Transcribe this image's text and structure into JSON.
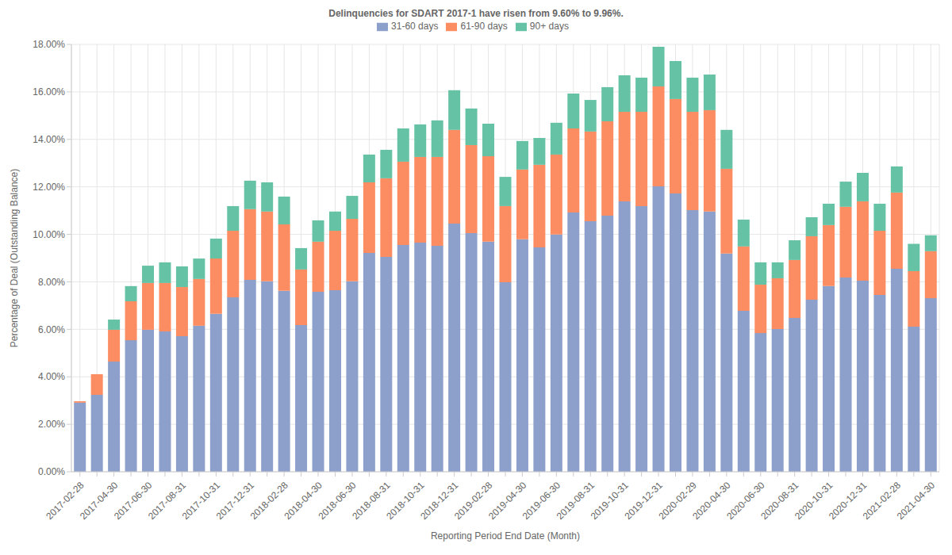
{
  "chart_data": {
    "type": "bar",
    "title": "Delinquencies for SDART 2017-1 have risen from 9.60% to 9.96%.",
    "x_label": "Reporting Period End Date (Month)",
    "y_label": "Percentage of Deal (Outstanding Balance)",
    "categories": [
      "2017-02-28",
      null,
      "2017-04-30",
      null,
      "2017-06-30",
      null,
      "2017-08-31",
      null,
      "2017-10-31",
      null,
      "2017-12-31",
      null,
      "2018-02-28",
      null,
      "2018-04-30",
      null,
      "2018-06-30",
      null,
      "2018-08-31",
      null,
      "2018-10-31",
      null,
      "2018-12-31",
      null,
      "2019-02-28",
      null,
      "2019-04-30",
      null,
      "2019-06-30",
      null,
      "2019-08-31",
      null,
      "2019-10-31",
      null,
      "2019-12-31",
      null,
      "2020-02-29",
      null,
      "2020-04-30",
      null,
      "2020-06-30",
      null,
      "2020-08-31",
      null,
      "2020-10-31",
      null,
      "2020-12-31",
      null,
      "2021-02-28",
      null,
      "2021-04-30"
    ],
    "series": [
      {
        "name": "31-60 days",
        "color": "#8da0cb",
        "values": [
          2.91,
          3.24,
          4.64,
          5.54,
          5.98,
          5.91,
          5.71,
          6.15,
          6.65,
          7.35,
          8.08,
          8.02,
          7.62,
          6.18,
          7.58,
          7.65,
          8.02,
          9.22,
          9.05,
          9.55,
          9.65,
          9.52,
          10.45,
          10.05,
          9.69,
          7.98,
          9.79,
          9.45,
          9.99,
          10.92,
          10.55,
          10.79,
          11.39,
          11.19,
          12.02,
          11.72,
          11.02,
          10.96,
          9.19,
          6.78,
          5.84,
          6.01,
          6.48,
          7.25,
          7.82,
          8.18,
          8.05,
          7.45,
          8.55,
          6.11,
          7.31
        ]
      },
      {
        "name": "61-90 days",
        "color": "#fc8d62",
        "values": [
          0.06,
          0.87,
          1.34,
          1.64,
          1.97,
          2.04,
          2.07,
          1.97,
          2.33,
          2.8,
          2.98,
          2.94,
          2.8,
          2.34,
          2.11,
          2.5,
          2.63,
          2.97,
          3.31,
          3.51,
          3.61,
          3.74,
          3.95,
          3.71,
          3.6,
          3.21,
          2.94,
          3.48,
          3.37,
          3.54,
          3.78,
          3.97,
          3.77,
          3.97,
          4.21,
          3.98,
          4.14,
          4.27,
          3.57,
          2.71,
          2.04,
          2.14,
          2.44,
          2.67,
          2.57,
          2.98,
          3.34,
          2.7,
          3.21,
          2.34,
          1.98
        ]
      },
      {
        "name": "90+ days",
        "color": "#66c2a5",
        "values": [
          0,
          0,
          0.43,
          0.64,
          0.73,
          0.87,
          0.87,
          0.86,
          0.84,
          1.04,
          1.2,
          1.23,
          1.17,
          0.9,
          0.9,
          0.81,
          0.97,
          1.17,
          1.2,
          1.4,
          1.37,
          1.54,
          1.67,
          1.54,
          1.37,
          1.23,
          1.2,
          1.13,
          1.34,
          1.47,
          1.33,
          1.44,
          1.54,
          1.44,
          1.67,
          1.6,
          1.44,
          1.5,
          1.64,
          1.13,
          0.94,
          0.67,
          0.83,
          0.8,
          0.9,
          1.06,
          1.2,
          1.14,
          1.1,
          1.15,
          0.67
        ]
      }
    ],
    "ylim": [
      0,
      18
    ],
    "yticks": [
      {
        "value": 0,
        "label": "0.00%"
      },
      {
        "value": 2,
        "label": "2.00%"
      },
      {
        "value": 4,
        "label": "4.00%"
      },
      {
        "value": 6,
        "label": "6.00%"
      },
      {
        "value": 8,
        "label": "8.00%"
      },
      {
        "value": 10,
        "label": "10.00%"
      },
      {
        "value": 12,
        "label": "12.00%"
      },
      {
        "value": 14,
        "label": "14.00%"
      },
      {
        "value": 16,
        "label": "16.00%"
      },
      {
        "value": 18,
        "label": "18.00%"
      }
    ],
    "grid": true,
    "stacked": true,
    "legend": "top"
  }
}
